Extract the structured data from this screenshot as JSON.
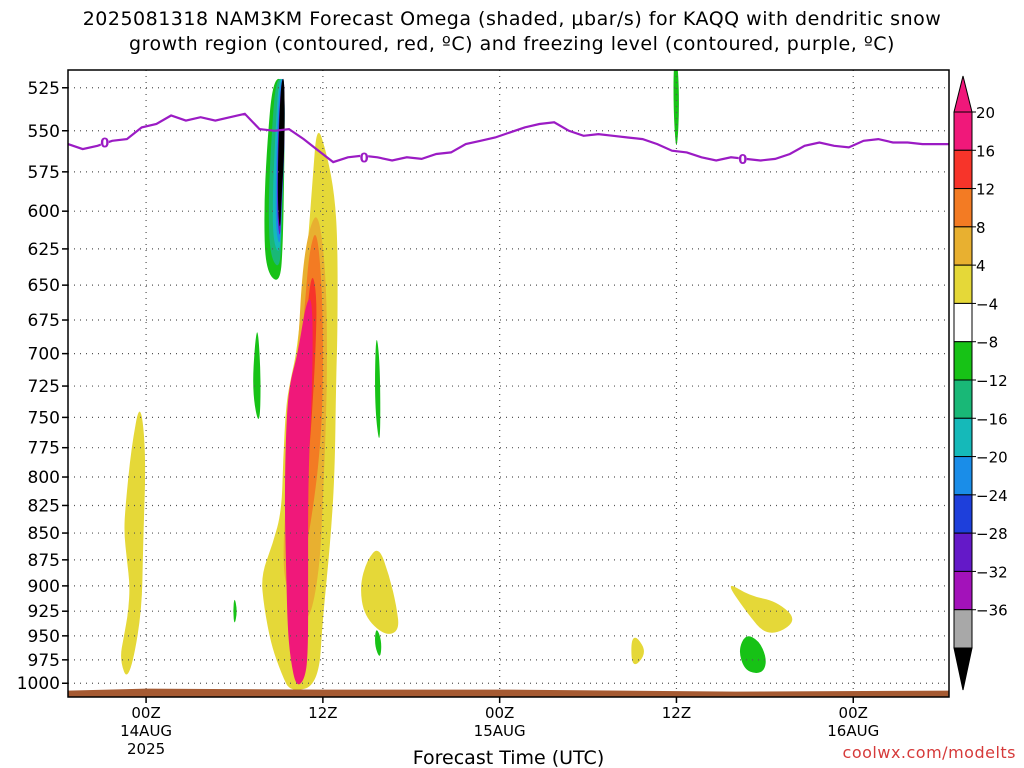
{
  "chart_data": {
    "type": "heatmap",
    "title_line1": "2025081318 NAM3KM Forecast Omega (shaded, μbar/s) for KAQQ with dendritic snow",
    "title_line2": "growth region (contoured, red, ºC) and freezing level (contoured, purple, ºC)",
    "xlabel": "Forecast Time (UTC)",
    "credit": "coolwx.com/modelts",
    "y_axis": {
      "label": "",
      "scale": "log",
      "inverted": true,
      "range": [
        1015,
        515
      ],
      "ticks": [
        525,
        550,
        575,
        600,
        625,
        650,
        675,
        700,
        725,
        750,
        775,
        800,
        825,
        850,
        875,
        900,
        925,
        950,
        975,
        1000
      ]
    },
    "x_axis": {
      "range_hours": [
        -5.3,
        54.5
      ],
      "ticks": [
        {
          "hour": 0,
          "line1": "00Z",
          "line2": "14AUG",
          "line3": "2025"
        },
        {
          "hour": 12,
          "line1": "12Z",
          "line2": "",
          "line3": ""
        },
        {
          "hour": 24,
          "line1": "00Z",
          "line2": "15AUG",
          "line3": ""
        },
        {
          "hour": 36,
          "line1": "12Z",
          "line2": "",
          "line3": ""
        },
        {
          "hour": 48,
          "line1": "00Z",
          "line2": "16AUG",
          "line3": ""
        }
      ]
    },
    "grid": true,
    "colorbar": {
      "placement": "right",
      "labels": [
        "20",
        "16",
        "12",
        "8",
        "4",
        "−4",
        "−8",
        "−12",
        "−16",
        "−20",
        "−24",
        "−28",
        "−32",
        "−36"
      ],
      "colors": [
        "#f0187a",
        "#f7342a",
        "#f37b23",
        "#e8b030",
        "#e5d838",
        "#ffffff",
        "#17c216",
        "#19b877",
        "#15b9b9",
        "#1a8de8",
        "#1e3fdb",
        "#6419c8",
        "#a312ba",
        "#a8a8a8"
      ],
      "top_arrow_color": "#f0187a",
      "bottom_arrow_color": "#000000"
    },
    "freezing_level": {
      "color": "#9b1bc4",
      "label": "0",
      "points": [
        [
          -5.3,
          558
        ],
        [
          -4.3,
          561
        ],
        [
          -3.3,
          559
        ],
        [
          -2.3,
          556
        ],
        [
          -1.3,
          555
        ],
        [
          -0.3,
          548
        ],
        [
          0.7,
          546
        ],
        [
          1.7,
          541
        ],
        [
          2.7,
          544
        ],
        [
          3.7,
          542
        ],
        [
          4.7,
          544
        ],
        [
          5.7,
          542
        ],
        [
          6.7,
          540
        ],
        [
          7.7,
          549
        ],
        [
          8.7,
          550
        ],
        [
          9.7,
          549
        ],
        [
          10.7,
          555
        ],
        [
          11.7,
          562
        ],
        [
          12.7,
          569
        ],
        [
          13.7,
          566
        ],
        [
          14.7,
          565
        ],
        [
          15.7,
          566
        ],
        [
          16.7,
          568
        ],
        [
          17.7,
          566
        ],
        [
          18.7,
          567
        ],
        [
          19.7,
          564
        ],
        [
          20.7,
          563
        ],
        [
          21.7,
          558
        ],
        [
          22.7,
          556
        ],
        [
          23.7,
          554
        ],
        [
          24.7,
          551
        ],
        [
          25.7,
          548
        ],
        [
          26.7,
          546
        ],
        [
          27.7,
          545
        ],
        [
          28.7,
          550
        ],
        [
          29.7,
          553
        ],
        [
          30.7,
          552
        ],
        [
          31.7,
          553
        ],
        [
          32.7,
          554
        ],
        [
          33.7,
          555
        ],
        [
          34.7,
          558
        ],
        [
          35.7,
          562
        ],
        [
          36.7,
          563
        ],
        [
          37.7,
          566
        ],
        [
          38.7,
          568
        ],
        [
          39.7,
          566
        ],
        [
          40.7,
          567
        ],
        [
          41.7,
          568
        ],
        [
          42.7,
          567
        ],
        [
          43.7,
          564
        ],
        [
          44.7,
          559
        ],
        [
          45.7,
          557
        ],
        [
          46.7,
          559
        ],
        [
          47.7,
          560
        ],
        [
          48.7,
          556
        ],
        [
          49.7,
          555
        ],
        [
          50.7,
          557
        ],
        [
          51.7,
          557
        ],
        [
          52.7,
          558
        ],
        [
          53.7,
          558
        ],
        [
          54.5,
          558
        ]
      ],
      "label_positions": [
        [
          -2.8,
          557
        ],
        [
          14.8,
          566
        ],
        [
          40.5,
          567
        ]
      ]
    },
    "ground_color": "#a55a32",
    "omega_regions": [
      {
        "value": 5,
        "color": "#e5d838",
        "points": [
          [
            -1.2,
            1000
          ],
          [
            -1.8,
            975
          ],
          [
            -1.5,
            950
          ],
          [
            -1.2,
            925
          ],
          [
            -1.1,
            900
          ],
          [
            -1.3,
            875
          ],
          [
            -1.5,
            850
          ],
          [
            -1.4,
            825
          ],
          [
            -1.0,
            775
          ],
          [
            -0.4,
            735
          ],
          [
            0.0,
            780
          ],
          [
            -0.2,
            860
          ],
          [
            -0.3,
            930
          ]
        ]
      },
      {
        "value": 5,
        "color": "#e5d838",
        "points": [
          [
            16.2,
            950
          ],
          [
            14.8,
            930
          ],
          [
            14.5,
            900
          ],
          [
            15.0,
            875
          ],
          [
            15.8,
            862
          ],
          [
            16.5,
            890
          ],
          [
            17.0,
            920
          ],
          [
            17.2,
            945
          ]
        ]
      },
      {
        "value": 5,
        "color": "#e5d838",
        "points": [
          [
            42.2,
            952
          ],
          [
            40.7,
            925
          ],
          [
            39.3,
            895
          ],
          [
            41.0,
            910
          ],
          [
            42.8,
            915
          ],
          [
            44.3,
            935
          ]
        ]
      },
      {
        "value": 5,
        "color": "#e5d838",
        "points": [
          [
            33.0,
            985
          ],
          [
            32.9,
            955
          ],
          [
            33.3,
            950
          ],
          [
            34.0,
            968
          ]
        ]
      },
      {
        "value": 5,
        "color": "#e5d838",
        "points": [
          [
            9.8,
            1010
          ],
          [
            9.2,
            990
          ],
          [
            8.5,
            960
          ],
          [
            8.0,
            920
          ],
          [
            7.8,
            890
          ],
          [
            8.6,
            860
          ],
          [
            9.2,
            830
          ],
          [
            9.3,
            785
          ],
          [
            9.5,
            740
          ],
          [
            9.8,
            720
          ],
          [
            10.2,
            700
          ],
          [
            10.6,
            660
          ],
          [
            11.0,
            620
          ],
          [
            11.3,
            580
          ],
          [
            11.6,
            545
          ],
          [
            12.3,
            565
          ],
          [
            12.8,
            590
          ],
          [
            13.0,
            620
          ],
          [
            13.0,
            680
          ],
          [
            12.9,
            720
          ],
          [
            12.8,
            800
          ],
          [
            12.5,
            860
          ],
          [
            12.0,
            930
          ],
          [
            11.7,
            1002
          ]
        ]
      },
      {
        "value": 9,
        "color": "#e8b030",
        "points": [
          [
            9.4,
            900
          ],
          [
            9.3,
            860
          ],
          [
            9.6,
            800
          ],
          [
            9.8,
            750
          ],
          [
            10.3,
            700
          ],
          [
            10.6,
            640
          ],
          [
            11.1,
            610
          ],
          [
            11.7,
            600
          ],
          [
            12.2,
            640
          ],
          [
            12.3,
            700
          ],
          [
            12.2,
            760
          ],
          [
            12.0,
            820
          ],
          [
            11.8,
            880
          ],
          [
            11.2,
            930
          ],
          [
            10.5,
            935
          ]
        ]
      },
      {
        "value": 13,
        "color": "#f37b23",
        "points": [
          [
            10.2,
            900
          ],
          [
            10.0,
            800
          ],
          [
            10.3,
            730
          ],
          [
            10.8,
            660
          ],
          [
            11.1,
            625
          ],
          [
            11.6,
            610
          ],
          [
            12.0,
            660
          ],
          [
            12.0,
            740
          ],
          [
            11.7,
            790
          ],
          [
            11.3,
            830
          ],
          [
            10.8,
            870
          ]
        ]
      },
      {
        "value": 17,
        "color": "#f7342a",
        "points": [
          [
            10.3,
            860
          ],
          [
            10.2,
            800
          ],
          [
            10.5,
            720
          ],
          [
            11.0,
            660
          ],
          [
            11.3,
            640
          ],
          [
            11.6,
            660
          ],
          [
            11.5,
            700
          ],
          [
            11.2,
            760
          ],
          [
            10.8,
            820
          ]
        ]
      },
      {
        "value": 21,
        "color": "#f0187a",
        "points": [
          [
            10.2,
            1005
          ],
          [
            9.8,
            975
          ],
          [
            9.6,
            940
          ],
          [
            9.5,
            880
          ],
          [
            9.4,
            820
          ],
          [
            9.5,
            760
          ],
          [
            9.7,
            725
          ],
          [
            10.3,
            700
          ],
          [
            10.9,
            660
          ],
          [
            11.3,
            660
          ],
          [
            11.3,
            720
          ],
          [
            11.0,
            800
          ],
          [
            11.0,
            900
          ],
          [
            11.0,
            965
          ],
          [
            10.8,
            995
          ]
        ]
      },
      {
        "value": -6,
        "color": "#17c216",
        "points": [
          [
            9.1,
            650
          ],
          [
            8.1,
            640
          ],
          [
            8.0,
            600
          ],
          [
            8.2,
            560
          ],
          [
            8.6,
            520
          ],
          [
            9.4,
            520
          ],
          [
            9.4,
            560
          ],
          [
            9.3,
            620
          ]
        ]
      },
      {
        "value": -10,
        "color": "#19b877",
        "points": [
          [
            9.1,
            640
          ],
          [
            8.4,
            630
          ],
          [
            8.3,
            595
          ],
          [
            8.5,
            555
          ],
          [
            8.8,
            520
          ],
          [
            9.4,
            520
          ],
          [
            9.4,
            560
          ],
          [
            9.2,
            610
          ]
        ]
      },
      {
        "value": -14,
        "color": "#15b9b9",
        "points": [
          [
            9.1,
            630
          ],
          [
            8.6,
            620
          ],
          [
            8.6,
            585
          ],
          [
            8.8,
            548
          ],
          [
            9.0,
            520
          ],
          [
            9.4,
            520
          ],
          [
            9.4,
            560
          ],
          [
            9.2,
            600
          ]
        ]
      },
      {
        "value": -18,
        "color": "#1a8de8",
        "points": [
          [
            9.1,
            625
          ],
          [
            8.8,
            612
          ],
          [
            8.8,
            580
          ],
          [
            8.9,
            545
          ],
          [
            9.1,
            520
          ],
          [
            9.4,
            520
          ],
          [
            9.4,
            560
          ],
          [
            9.2,
            598
          ]
        ]
      },
      {
        "value": -26,
        "color": "#6419c8",
        "points": [
          [
            9.1,
            620
          ],
          [
            8.9,
            605
          ],
          [
            8.9,
            575
          ],
          [
            9.0,
            542
          ],
          [
            9.2,
            520
          ],
          [
            9.4,
            520
          ],
          [
            9.4,
            560
          ],
          [
            9.2,
            595
          ]
        ]
      },
      {
        "value": -40,
        "color": "#000000",
        "points": [
          [
            9.1,
            615
          ],
          [
            8.95,
            598
          ],
          [
            8.95,
            570
          ],
          [
            9.05,
            540
          ],
          [
            9.2,
            520
          ],
          [
            9.4,
            520
          ],
          [
            9.4,
            560
          ],
          [
            9.2,
            590
          ]
        ]
      },
      {
        "value": -6,
        "color": "#17c216",
        "points": [
          [
            7.7,
            760
          ],
          [
            7.2,
            730
          ],
          [
            7.4,
            690
          ],
          [
            7.6,
            680
          ],
          [
            7.8,
            720
          ]
        ]
      },
      {
        "value": -6,
        "color": "#17c216",
        "points": [
          [
            6.0,
            940
          ],
          [
            5.9,
            925
          ],
          [
            6.0,
            910
          ],
          [
            6.2,
            925
          ]
        ]
      },
      {
        "value": -6,
        "color": "#17c216",
        "points": [
          [
            15.9,
            975
          ],
          [
            15.5,
            960
          ],
          [
            15.6,
            940
          ],
          [
            16.0,
            955
          ]
        ]
      },
      {
        "value": -6,
        "color": "#17c216",
        "points": [
          [
            15.9,
            780
          ],
          [
            15.5,
            740
          ],
          [
            15.6,
            680
          ],
          [
            15.9,
            710
          ]
        ]
      },
      {
        "value": -6,
        "color": "#17c216",
        "points": [
          [
            36.0,
            565
          ],
          [
            35.8,
            540
          ],
          [
            35.8,
            510
          ],
          [
            36.1,
            510
          ],
          [
            36.2,
            540
          ]
        ]
      },
      {
        "value": -6,
        "color": "#17c216",
        "points": [
          [
            41.4,
            990
          ],
          [
            40.6,
            985
          ],
          [
            40.2,
            965
          ],
          [
            40.7,
            948
          ],
          [
            41.6,
            955
          ],
          [
            42.1,
            972
          ],
          [
            42.0,
            986
          ]
        ]
      }
    ]
  }
}
